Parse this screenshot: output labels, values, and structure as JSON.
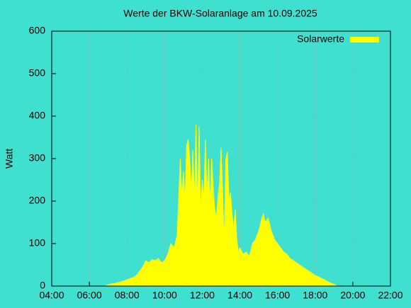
{
  "chart_data": {
    "type": "area",
    "title": "Werte der BKW-Solaranlage am 10.09.2025",
    "y_label": "Watt",
    "x": [
      "06:50",
      "07:00",
      "07:10",
      "07:20",
      "07:30",
      "07:40",
      "07:50",
      "08:00",
      "08:10",
      "08:20",
      "08:30",
      "08:40",
      "08:50",
      "09:00",
      "09:10",
      "09:20",
      "09:30",
      "09:40",
      "09:50",
      "10:00",
      "10:10",
      "10:20",
      "10:30",
      "10:40",
      "10:45",
      "10:50",
      "10:55",
      "11:00",
      "11:05",
      "11:10",
      "11:15",
      "11:20",
      "11:25",
      "11:30",
      "11:35",
      "11:40",
      "11:45",
      "11:50",
      "11:55",
      "12:00",
      "12:05",
      "12:10",
      "12:15",
      "12:20",
      "12:25",
      "12:30",
      "12:35",
      "12:40",
      "12:45",
      "12:50",
      "12:55",
      "13:00",
      "13:05",
      "13:10",
      "13:15",
      "13:20",
      "13:25",
      "13:30",
      "13:35",
      "13:40",
      "13:45",
      "13:50",
      "13:55",
      "14:00",
      "14:10",
      "14:20",
      "14:30",
      "14:40",
      "14:50",
      "15:00",
      "15:10",
      "15:15",
      "15:20",
      "15:30",
      "15:40",
      "15:50",
      "16:00",
      "16:10",
      "16:20",
      "16:30",
      "16:40",
      "16:50",
      "17:00",
      "17:10",
      "17:20",
      "17:30",
      "17:40",
      "17:50",
      "18:00",
      "18:10",
      "18:20",
      "18:30",
      "18:40",
      "18:50",
      "19:00",
      "19:10"
    ],
    "series": [
      {
        "name": "Solarwerte",
        "color": "#ffff00",
        "values": [
          0,
          3,
          5,
          6,
          8,
          10,
          12,
          15,
          18,
          20,
          25,
          35,
          45,
          60,
          55,
          62,
          60,
          65,
          55,
          60,
          75,
          100,
          90,
          120,
          210,
          300,
          210,
          270,
          200,
          330,
          345,
          300,
          220,
          320,
          200,
          380,
          180,
          375,
          170,
          250,
          200,
          345,
          210,
          300,
          190,
          300,
          230,
          180,
          160,
          210,
          240,
          325,
          220,
          100,
          300,
          315,
          200,
          220,
          170,
          130,
          180,
          110,
          80,
          90,
          75,
          80,
          70,
          100,
          110,
          130,
          160,
          170,
          150,
          160,
          130,
          110,
          100,
          90,
          80,
          75,
          65,
          60,
          55,
          50,
          45,
          40,
          35,
          30,
          25,
          22,
          18,
          15,
          10,
          7,
          4,
          0
        ]
      }
    ],
    "xlim": [
      "04:00",
      "22:00"
    ],
    "xticks": [
      "04:00",
      "06:00",
      "08:00",
      "10:00",
      "12:00",
      "14:00",
      "16:00",
      "18:00",
      "20:00",
      "22:00"
    ],
    "ylim": [
      0,
      600
    ],
    "yticks": [
      0,
      100,
      200,
      300,
      400,
      500,
      600
    ],
    "grid": true,
    "legend": "top-right"
  }
}
